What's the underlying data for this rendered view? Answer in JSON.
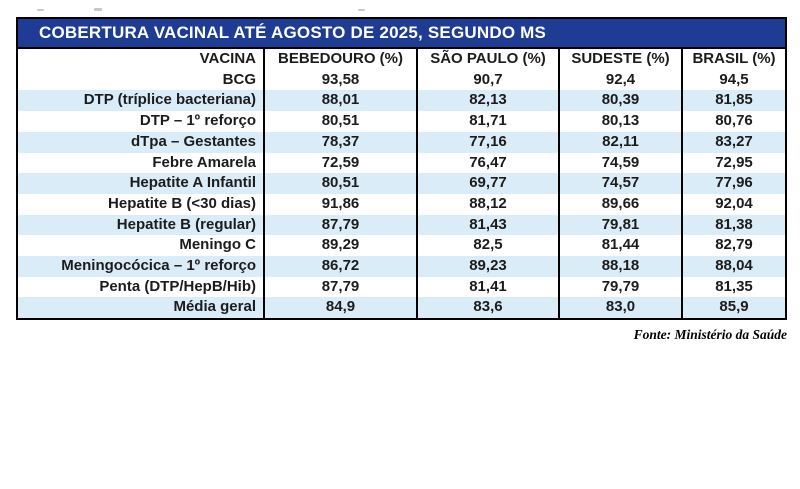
{
  "title": "COBERTURA VACINAL ATÉ AGOSTO DE 2025, SEGUNDO MS",
  "source_note": "Fonte: Ministério da Saúde",
  "colors": {
    "title_bg": "#1e3c94",
    "title_fg": "#ffffff",
    "stripe": "#d9ecf8",
    "border": "#000000",
    "text": "#1c1c1c"
  },
  "table": {
    "columns": [
      "VACINA",
      "BEBEDOURO (%)",
      "SÃO PAULO (%)",
      "SUDESTE (%)",
      "BRASIL (%)"
    ],
    "rows": [
      {
        "vacina": "BCG",
        "values": [
          "93,58",
          "90,7",
          "92,4",
          "94,5"
        ]
      },
      {
        "vacina": "DTP (tríplice bacteriana)",
        "values": [
          "88,01",
          "82,13",
          "80,39",
          "81,85"
        ]
      },
      {
        "vacina": "DTP – 1º reforço",
        "values": [
          "80,51",
          "81,71",
          "80,13",
          "80,76"
        ]
      },
      {
        "vacina": "dTpa – Gestantes",
        "values": [
          "78,37",
          "77,16",
          "82,11",
          "83,27"
        ]
      },
      {
        "vacina": "Febre Amarela",
        "values": [
          "72,59",
          "76,47",
          "74,59",
          "72,95"
        ]
      },
      {
        "vacina": "Hepatite A Infantil",
        "values": [
          "80,51",
          "69,77",
          "74,57",
          "77,96"
        ]
      },
      {
        "vacina": "Hepatite B (<30 dias)",
        "values": [
          "91,86",
          "88,12",
          "89,66",
          "92,04"
        ]
      },
      {
        "vacina": "Hepatite B (regular)",
        "values": [
          "87,79",
          "81,43",
          "79,81",
          "81,38"
        ]
      },
      {
        "vacina": "Meningo C",
        "values": [
          "89,29",
          "82,5",
          "81,44",
          "82,79"
        ]
      },
      {
        "vacina": "Meningocócica – 1º reforço",
        "values": [
          "86,72",
          "89,23",
          "88,18",
          "88,04"
        ]
      },
      {
        "vacina": "Penta (DTP/HepB/Hib)",
        "values": [
          "87,79",
          "81,41",
          "79,79",
          "81,35"
        ]
      },
      {
        "vacina": "Média geral",
        "values": [
          "84,9",
          "83,6",
          "83,0",
          "85,9"
        ]
      }
    ]
  },
  "chart_data": {
    "type": "table",
    "title": "COBERTURA VACINAL ATÉ AGOSTO DE 2025, SEGUNDO MS",
    "columns": [
      "VACINA",
      "BEBEDOURO (%)",
      "SÃO PAULO (%)",
      "SUDESTE (%)",
      "BRASIL (%)"
    ],
    "rows": [
      [
        "BCG",
        93.58,
        90.7,
        92.4,
        94.5
      ],
      [
        "DTP (tríplice bacteriana)",
        88.01,
        82.13,
        80.39,
        81.85
      ],
      [
        "DTP – 1º reforço",
        80.51,
        81.71,
        80.13,
        80.76
      ],
      [
        "dTpa – Gestantes",
        78.37,
        77.16,
        82.11,
        83.27
      ],
      [
        "Febre Amarela",
        72.59,
        76.47,
        74.59,
        72.95
      ],
      [
        "Hepatite A Infantil",
        80.51,
        69.77,
        74.57,
        77.96
      ],
      [
        "Hepatite B (<30 dias)",
        91.86,
        88.12,
        89.66,
        92.04
      ],
      [
        "Hepatite B (regular)",
        87.79,
        81.43,
        79.81,
        81.38
      ],
      [
        "Meningo C",
        89.29,
        82.5,
        81.44,
        82.79
      ],
      [
        "Meningocócica – 1º reforço",
        86.72,
        89.23,
        88.18,
        88.04
      ],
      [
        "Penta (DTP/HepB/Hib)",
        87.79,
        81.41,
        79.79,
        81.35
      ],
      [
        "Média geral",
        84.9,
        83.6,
        83.0,
        85.9
      ]
    ],
    "value_unit": "%",
    "decimal_separator": ",",
    "source": "Fonte: Ministério da Saúde",
    "layout": {
      "striped_rows": true,
      "first_column_align": "right",
      "value_align": "center"
    }
  }
}
